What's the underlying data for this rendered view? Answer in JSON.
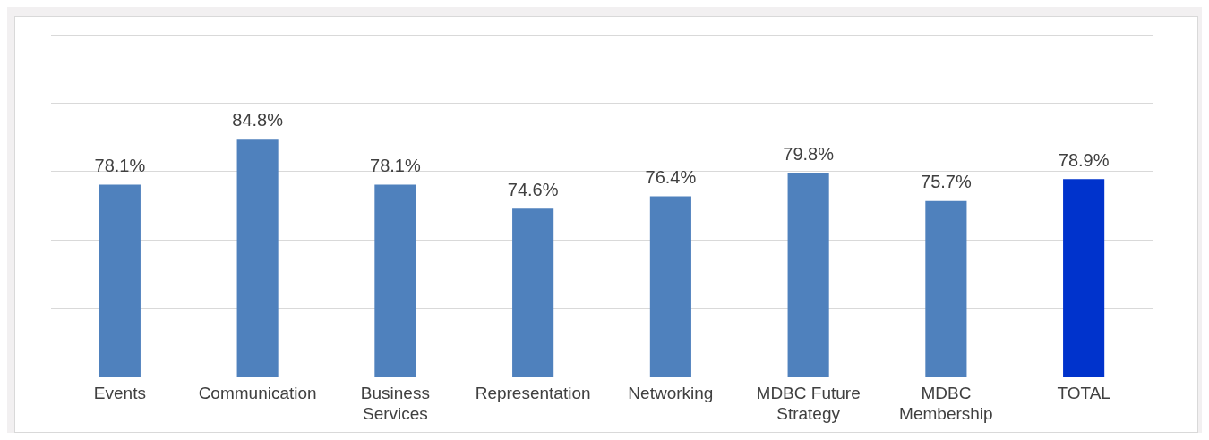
{
  "chart_data": {
    "type": "bar",
    "categories": [
      "Events",
      "Communication",
      "Business Services",
      "Representation",
      "Networking",
      "MDBC Future Strategy",
      "MDBC Membership",
      "TOTAL"
    ],
    "values": [
      78.1,
      84.8,
      78.1,
      74.6,
      76.4,
      79.8,
      75.7,
      78.9
    ],
    "colors": [
      "#4f81bd",
      "#4f81bd",
      "#4f81bd",
      "#4f81bd",
      "#4f81bd",
      "#4f81bd",
      "#4f81bd",
      "#0033cc"
    ],
    "value_labels": [
      "78.1%",
      "84.8%",
      "78.1%",
      "74.6%",
      "76.4%",
      "79.8%",
      "75.7%",
      "78.9%"
    ],
    "ylim": [
      50,
      100
    ],
    "yticks": [
      50,
      60,
      70,
      80,
      90,
      100
    ],
    "tick_labels": "x",
    "grid": "y",
    "legend": false
  }
}
